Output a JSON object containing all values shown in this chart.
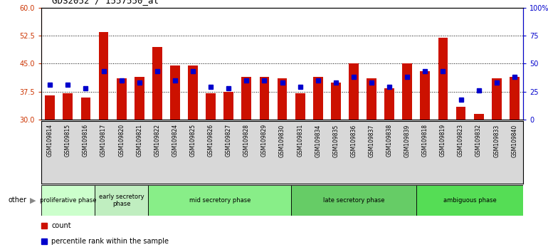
{
  "title": "GDS2052 / 1557550_at",
  "samples": [
    "GSM109814",
    "GSM109815",
    "GSM109816",
    "GSM109817",
    "GSM109820",
    "GSM109821",
    "GSM109822",
    "GSM109824",
    "GSM109825",
    "GSM109826",
    "GSM109827",
    "GSM109828",
    "GSM109829",
    "GSM109830",
    "GSM109831",
    "GSM109834",
    "GSM109835",
    "GSM109836",
    "GSM109837",
    "GSM109838",
    "GSM109839",
    "GSM109818",
    "GSM109819",
    "GSM109823",
    "GSM109832",
    "GSM109833",
    "GSM109840"
  ],
  "count_values": [
    36.5,
    37.0,
    36.0,
    53.5,
    41.0,
    41.5,
    49.5,
    44.5,
    44.5,
    37.0,
    37.5,
    41.5,
    41.5,
    41.0,
    37.0,
    41.5,
    40.0,
    45.0,
    41.0,
    38.5,
    45.0,
    43.0,
    52.0,
    33.5,
    31.5,
    41.0,
    41.5
  ],
  "percentile_values": [
    31,
    31,
    28,
    43,
    35,
    33,
    43,
    35,
    43,
    29,
    28,
    35,
    35,
    33,
    29,
    35,
    33,
    38,
    33,
    29,
    38,
    43,
    43,
    18,
    26,
    33,
    38
  ],
  "y_min": 30,
  "y_max": 60,
  "y_ticks": [
    30,
    37.5,
    45,
    52.5,
    60
  ],
  "right_y_ticks_pct": [
    0,
    25,
    50,
    75,
    100
  ],
  "right_y_labels": [
    "0",
    "25",
    "50",
    "75",
    "100%"
  ],
  "bar_color": "#cc1100",
  "percentile_color": "#0000cc",
  "bar_bottom": 30,
  "dotted_yticks": [
    37.5,
    45.0,
    52.5
  ],
  "phases": [
    {
      "label": "proliferative phase",
      "start": 0,
      "end": 3,
      "color": "#ccffcc"
    },
    {
      "label": "early secretory\nphase",
      "start": 3,
      "end": 6,
      "color": "#c0eec0"
    },
    {
      "label": "mid secretory phase",
      "start": 6,
      "end": 14,
      "color": "#88ee88"
    },
    {
      "label": "late secretory phase",
      "start": 14,
      "end": 21,
      "color": "#66cc66"
    },
    {
      "label": "ambiguous phase",
      "start": 21,
      "end": 27,
      "color": "#55dd55"
    }
  ],
  "tick_bg_color": "#d8d8d8",
  "left_axis_color": "#cc3300",
  "right_axis_color": "#0000cc",
  "other_label": "other"
}
